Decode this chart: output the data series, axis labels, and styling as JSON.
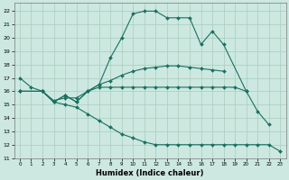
{
  "xlabel": "Humidex (Indice chaleur)",
  "background_color": "#cce8e0",
  "grid_color": "#aaccbb",
  "line_color": "#1a7060",
  "xlim": [
    -0.5,
    23.5
  ],
  "ylim": [
    11,
    22.6
  ],
  "yticks": [
    11,
    12,
    13,
    14,
    15,
    16,
    17,
    18,
    19,
    20,
    21,
    22
  ],
  "xticks": [
    0,
    1,
    2,
    3,
    4,
    5,
    6,
    7,
    8,
    9,
    10,
    11,
    12,
    13,
    14,
    15,
    16,
    17,
    18,
    19,
    20,
    21,
    22,
    23
  ],
  "series": [
    {
      "x": [
        0,
        1,
        2,
        3,
        4,
        5,
        6,
        7,
        8,
        9,
        10,
        11,
        12,
        13,
        14,
        15,
        16,
        17,
        18,
        20,
        21,
        22
      ],
      "y": [
        17.0,
        16.3,
        16.0,
        15.3,
        15.5,
        15.5,
        16.0,
        16.5,
        18.5,
        20.0,
        21.8,
        22.0,
        22.0,
        21.5,
        21.5,
        21.5,
        19.5,
        20.5,
        19.5,
        16.0,
        14.5,
        13.5
      ]
    },
    {
      "x": [
        0,
        2,
        3,
        4,
        5,
        6,
        7,
        8,
        9,
        10,
        11,
        12,
        13,
        14,
        15,
        16,
        17,
        18,
        19,
        20
      ],
      "y": [
        16.0,
        16.0,
        15.2,
        15.7,
        15.2,
        16.0,
        16.3,
        16.3,
        16.3,
        16.3,
        16.3,
        16.3,
        16.3,
        16.3,
        16.3,
        16.3,
        16.3,
        16.3,
        16.3,
        16.0
      ]
    },
    {
      "x": [
        0,
        2,
        3,
        4,
        5,
        6,
        7,
        8,
        9,
        10,
        11,
        12,
        13,
        14,
        15,
        16,
        17,
        18
      ],
      "y": [
        16.0,
        16.0,
        15.2,
        15.7,
        15.2,
        16.0,
        16.5,
        16.8,
        17.2,
        17.5,
        17.7,
        17.8,
        17.9,
        17.9,
        17.8,
        17.7,
        17.6,
        17.5
      ]
    },
    {
      "x": [
        0,
        2,
        3,
        4,
        5,
        6,
        7,
        8,
        9,
        10,
        11,
        12,
        13,
        14,
        15,
        16,
        17,
        18,
        19,
        20,
        21,
        22,
        23
      ],
      "y": [
        16.0,
        16.0,
        15.2,
        15.0,
        14.8,
        14.3,
        13.8,
        13.3,
        12.8,
        12.5,
        12.2,
        12.0,
        12.0,
        12.0,
        12.0,
        12.0,
        12.0,
        12.0,
        12.0,
        12.0,
        12.0,
        12.0,
        11.5
      ]
    }
  ]
}
